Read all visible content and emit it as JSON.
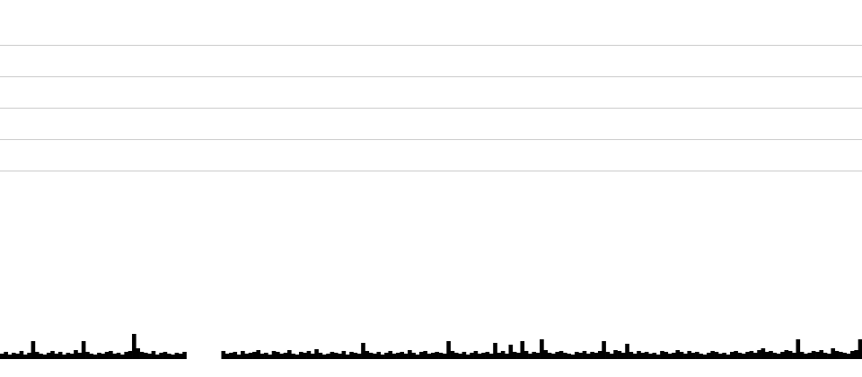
{
  "chart_data": {
    "type": "bar",
    "title": "",
    "xlabel": "",
    "ylabel": "",
    "grid": true,
    "gridlines": [
      210,
      245,
      280,
      315,
      350
    ],
    "ylim": [
      0,
      350
    ],
    "bar_color": "#000000",
    "grid_color": "#cccccc",
    "values": [
      6,
      8,
      5,
      7,
      6,
      9,
      5,
      7,
      20,
      8,
      6,
      5,
      7,
      9,
      6,
      8,
      5,
      7,
      6,
      10,
      7,
      20,
      8,
      6,
      5,
      7,
      6,
      8,
      9,
      6,
      7,
      5,
      8,
      9,
      28,
      12,
      8,
      7,
      6,
      9,
      5,
      7,
      8,
      6,
      5,
      7,
      6,
      8,
      null,
      null,
      null,
      null,
      null,
      null,
      null,
      null,
      null,
      9,
      6,
      7,
      8,
      5,
      9,
      6,
      7,
      8,
      10,
      6,
      7,
      5,
      9,
      8,
      6,
      7,
      10,
      6,
      5,
      8,
      7,
      9,
      6,
      11,
      7,
      5,
      6,
      8,
      7,
      6,
      9,
      5,
      8,
      7,
      6,
      18,
      9,
      7,
      6,
      8,
      5,
      7,
      9,
      6,
      7,
      8,
      6,
      10,
      7,
      5,
      8,
      9,
      6,
      7,
      8,
      7,
      6,
      20,
      9,
      7,
      6,
      8,
      5,
      7,
      9,
      6,
      7,
      8,
      6,
      18,
      7,
      9,
      6,
      16,
      8,
      7,
      20,
      9,
      6,
      8,
      7,
      22,
      10,
      7,
      6,
      8,
      9,
      7,
      6,
      5,
      8,
      7,
      9,
      6,
      8,
      7,
      9,
      20,
      8,
      6,
      10,
      9,
      7,
      17,
      8,
      6,
      9,
      7,
      8,
      6,
      7,
      5,
      9,
      8,
      6,
      7,
      10,
      8,
      6,
      9,
      7,
      8,
      6,
      5,
      7,
      9,
      8,
      6,
      7,
      5,
      8,
      9,
      7,
      6,
      8,
      9,
      7,
      10,
      12,
      8,
      9,
      7,
      6,
      8,
      10,
      9,
      7,
      22,
      8,
      6,
      7,
      9,
      8,
      10,
      7,
      6,
      12,
      9,
      8,
      7,
      6,
      9,
      10,
      22
    ]
  }
}
